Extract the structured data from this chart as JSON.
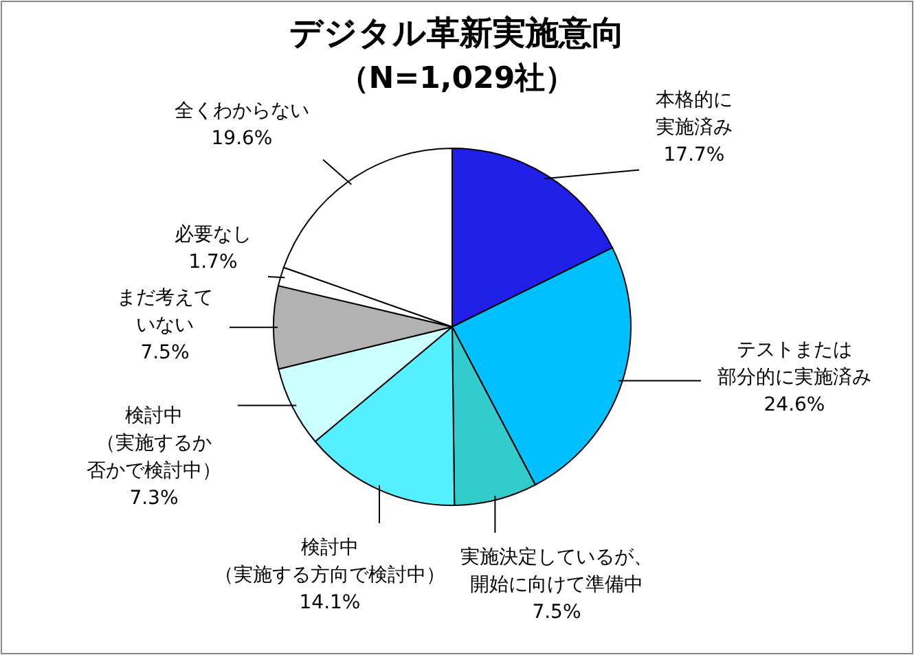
{
  "chart_data": {
    "type": "pie",
    "title": "デジタル革新実施意向",
    "subtitle": "（N=1,029社）",
    "categories": [
      "本格的に実施済み",
      "テストまたは部分的に実施済み",
      "実施決定しているが、開始に向けて準備中",
      "検討中（実施する方向で検討中）",
      "検討中（実施するか否かで検討中）",
      "まだ考えていない",
      "必要なし",
      "全くわからない"
    ],
    "values": [
      17.7,
      24.6,
      7.5,
      14.1,
      7.3,
      7.5,
      1.7,
      19.6
    ],
    "colors": [
      "#2020e8",
      "#00c0ff",
      "#33cccc",
      "#55f0ff",
      "#ccffff",
      "#b2b2b2",
      "#ffffff",
      "#ffffff"
    ],
    "value_labels": [
      "17.7%",
      "24.6%",
      "7.5%",
      "14.1%",
      "7.3%",
      "7.5%",
      "1.7%",
      "19.6%"
    ]
  }
}
